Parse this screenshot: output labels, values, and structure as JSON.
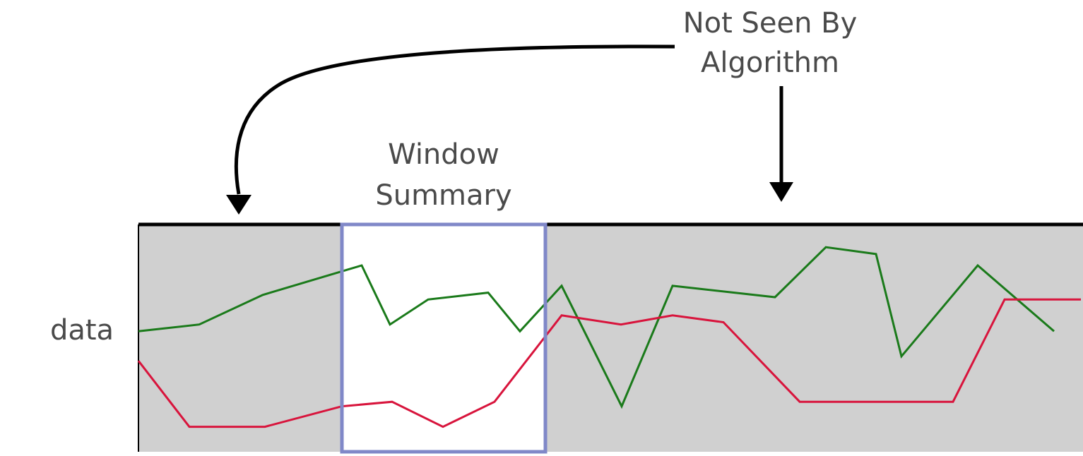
{
  "labels": {
    "not_seen_line1": "Not Seen By",
    "not_seen_line2": "Algorithm",
    "window_line1": "Window",
    "window_line2": "Summary",
    "y_axis": "data"
  },
  "colors": {
    "background_region": "#d0d0d0",
    "window_region": "#ffffff",
    "window_border": "#8088c8",
    "green_series": "#1a7a1a",
    "red_series": "#d8143c",
    "axis": "#000000",
    "arrow": "#000000",
    "text": "#4a4a4a"
  },
  "series": [
    {
      "color_key": "green_series",
      "values": [
        0.53,
        0.56,
        0.69,
        0.82,
        0.56,
        0.67,
        0.7,
        0.53,
        0.73,
        0.2,
        0.73,
        0.68,
        0.9,
        0.87,
        0.42,
        0.82,
        0.53
      ]
    },
    {
      "color_key": "red_series",
      "values": [
        0.4,
        0.11,
        0.11,
        0.2,
        0.22,
        0.11,
        0.22,
        0.6,
        0.56,
        0.6,
        0.57,
        0.22,
        0.22,
        0.22,
        0.67,
        0.67
      ]
    }
  ]
}
